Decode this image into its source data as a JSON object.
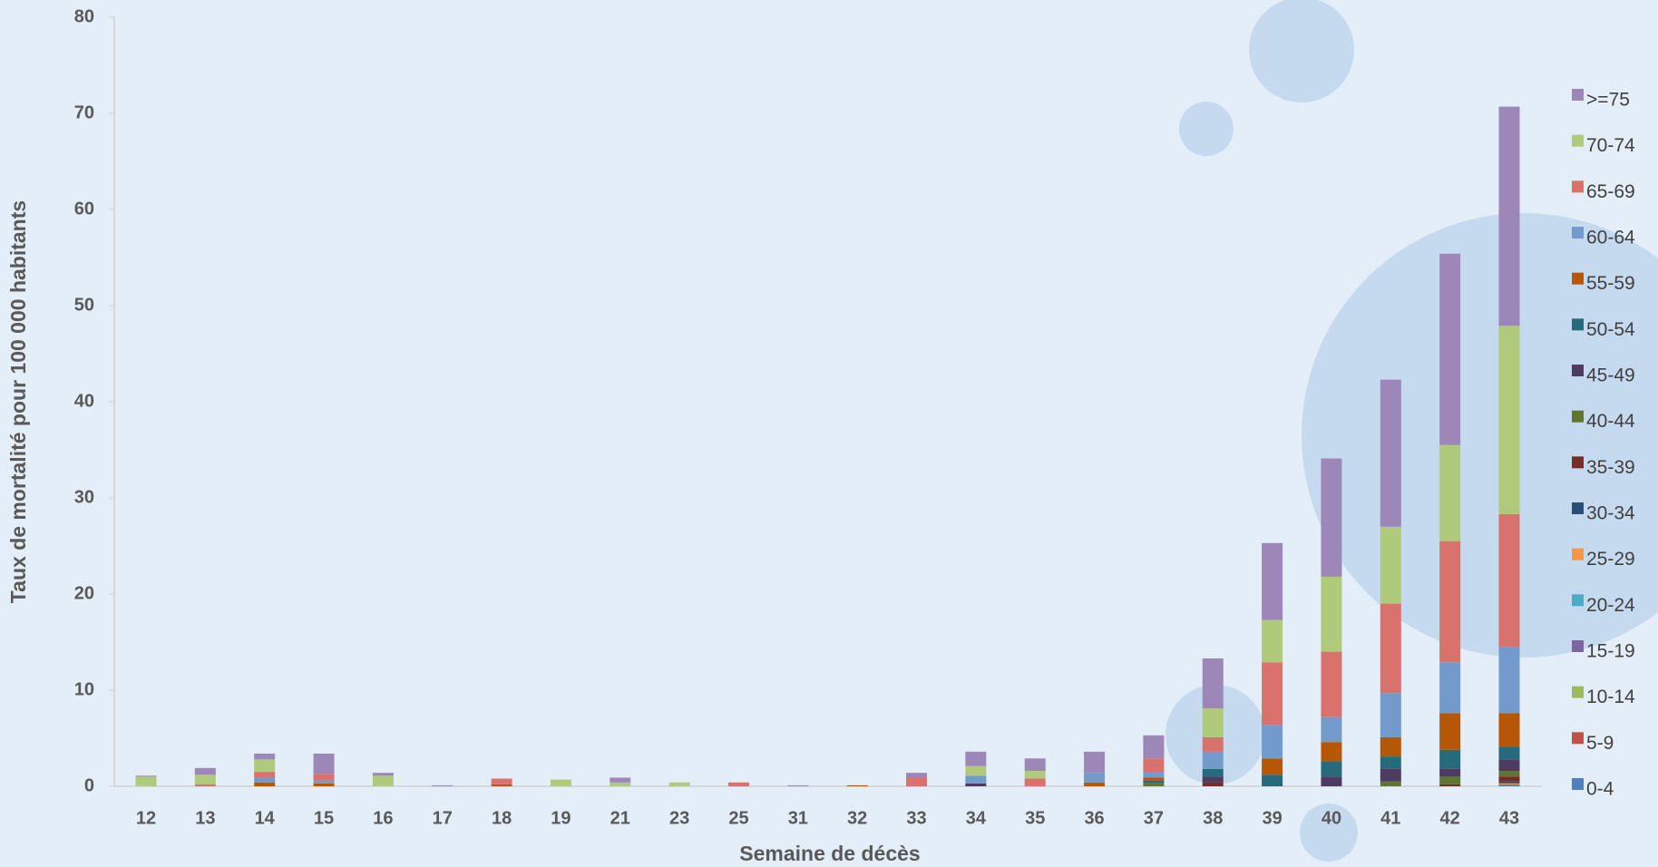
{
  "chart_data": {
    "type": "stacked-bar",
    "x_label": "Semaine de décès",
    "y_label": "Taux de mortalité  pour 100 000 habitants",
    "categories": [
      "12",
      "13",
      "14",
      "15",
      "16",
      "17",
      "18",
      "19",
      "21",
      "23",
      "25",
      "31",
      "32",
      "33",
      "34",
      "35",
      "36",
      "37",
      "38",
      "39",
      "40",
      "41",
      "42",
      "43"
    ],
    "ylim": [
      0,
      80
    ],
    "yticks": [
      0,
      10,
      20,
      30,
      40,
      50,
      60,
      70,
      80
    ],
    "grid": false,
    "legend": "right",
    "series": [
      {
        "name": "0-4",
        "color": "#4f81bd",
        "values": [
          0,
          0,
          0,
          0,
          0,
          0,
          0,
          0,
          0,
          0,
          0,
          0,
          0,
          0,
          0,
          0,
          0,
          0,
          0,
          0,
          0,
          0,
          0,
          0.1
        ]
      },
      {
        "name": "5-9",
        "color": "#c0504d",
        "values": [
          0,
          0,
          0,
          0,
          0,
          0,
          0,
          0,
          0,
          0,
          0,
          0,
          0,
          0,
          0,
          0,
          0,
          0,
          0,
          0,
          0,
          0,
          0,
          0.1
        ]
      },
      {
        "name": "10-14",
        "color": "#9bbb59",
        "values": [
          0,
          0,
          0,
          0,
          0,
          0,
          0,
          0,
          0,
          0,
          0,
          0,
          0,
          0,
          0,
          0,
          0,
          0,
          0,
          0,
          0,
          0,
          0,
          0
        ]
      },
      {
        "name": "15-19",
        "color": "#8064a2",
        "values": [
          0,
          0,
          0,
          0,
          0,
          0,
          0,
          0,
          0,
          0,
          0,
          0,
          0,
          0,
          0,
          0,
          0,
          0,
          0,
          0,
          0,
          0,
          0,
          0
        ]
      },
      {
        "name": "20-24",
        "color": "#4bacc6",
        "values": [
          0,
          0,
          0,
          0,
          0,
          0,
          0,
          0,
          0,
          0,
          0,
          0,
          0,
          0,
          0,
          0,
          0,
          0,
          0,
          0,
          0,
          0,
          0,
          0
        ]
      },
      {
        "name": "25-29",
        "color": "#f79646",
        "values": [
          0,
          0,
          0,
          0,
          0,
          0,
          0,
          0,
          0,
          0,
          0,
          0,
          0,
          0,
          0,
          0,
          0,
          0,
          0,
          0,
          0,
          0,
          0,
          0.1
        ]
      },
      {
        "name": "30-34",
        "color": "#2c4d75",
        "values": [
          0,
          0,
          0,
          0,
          0,
          0,
          0,
          0,
          0,
          0,
          0,
          0,
          0,
          0,
          0,
          0,
          0,
          0,
          0,
          0,
          0,
          0,
          0,
          0.2
        ]
      },
      {
        "name": "35-39",
        "color": "#772c2a",
        "values": [
          0,
          0,
          0,
          0,
          0,
          0,
          0,
          0,
          0,
          0,
          0,
          0,
          0,
          0,
          0,
          0,
          0,
          0,
          0.4,
          0,
          0,
          0,
          0.2,
          0.5
        ]
      },
      {
        "name": "40-44",
        "color": "#5f7530",
        "values": [
          0,
          0,
          0,
          0,
          0,
          0,
          0,
          0,
          0,
          0,
          0,
          0,
          0,
          0,
          0,
          0,
          0,
          0.3,
          0,
          0,
          0,
          0.5,
          0.8,
          0.6
        ]
      },
      {
        "name": "45-49",
        "color": "#4d3b62",
        "values": [
          0,
          0,
          0,
          0,
          0,
          0,
          0,
          0,
          0,
          0,
          0,
          0,
          0,
          0,
          0.3,
          0,
          0,
          0,
          0.6,
          0,
          1.0,
          1.3,
          0.8,
          1.2
        ]
      },
      {
        "name": "50-54",
        "color": "#276a7c",
        "values": [
          0,
          0,
          0,
          0,
          0,
          0,
          0,
          0,
          0,
          0,
          0,
          0,
          0,
          0,
          0,
          0,
          0,
          0.3,
          0.8,
          1.2,
          1.6,
          1.3,
          2.0,
          1.3
        ]
      },
      {
        "name": "55-59",
        "color": "#b65708",
        "values": [
          0,
          0,
          0.4,
          0.3,
          0,
          0,
          0.2,
          0,
          0,
          0,
          0,
          0,
          0.1,
          0,
          0,
          0,
          0.4,
          0.3,
          0,
          1.7,
          2.0,
          2.0,
          3.8,
          3.5
        ]
      },
      {
        "name": "60-64",
        "color": "#729aca",
        "values": [
          0,
          0,
          0.5,
          0.3,
          0,
          0,
          0,
          0,
          0,
          0,
          0,
          0,
          0,
          0,
          0.8,
          0,
          1.0,
          0.6,
          1.8,
          3.5,
          2.6,
          4.6,
          5.3,
          6.9
        ]
      },
      {
        "name": "65-69",
        "color": "#d9716d",
        "values": [
          0,
          0.2,
          0.6,
          0.7,
          0,
          0,
          0.6,
          0,
          0,
          0,
          0.4,
          0,
          0,
          0.9,
          0,
          0.8,
          0,
          1.4,
          1.5,
          6.5,
          6.8,
          9.3,
          12.6,
          13.8
        ]
      },
      {
        "name": "70-74",
        "color": "#afca7b",
        "values": [
          1.0,
          1.0,
          1.3,
          0,
          1.1,
          0,
          0,
          0.7,
          0.4,
          0.4,
          0,
          0,
          0,
          0,
          1.0,
          0.8,
          0,
          0,
          3.0,
          4.4,
          7.8,
          8.0,
          10.0,
          19.6
        ]
      },
      {
        "name": ">=75",
        "color": "#9d87b9",
        "values": [
          0.1,
          0.7,
          0.6,
          2.1,
          0.3,
          0.1,
          0,
          0,
          0.5,
          0,
          0,
          0.1,
          0,
          0.5,
          1.5,
          1.3,
          2.2,
          2.4,
          5.2,
          8.0,
          12.3,
          15.3,
          19.9,
          22.8
        ]
      }
    ]
  }
}
